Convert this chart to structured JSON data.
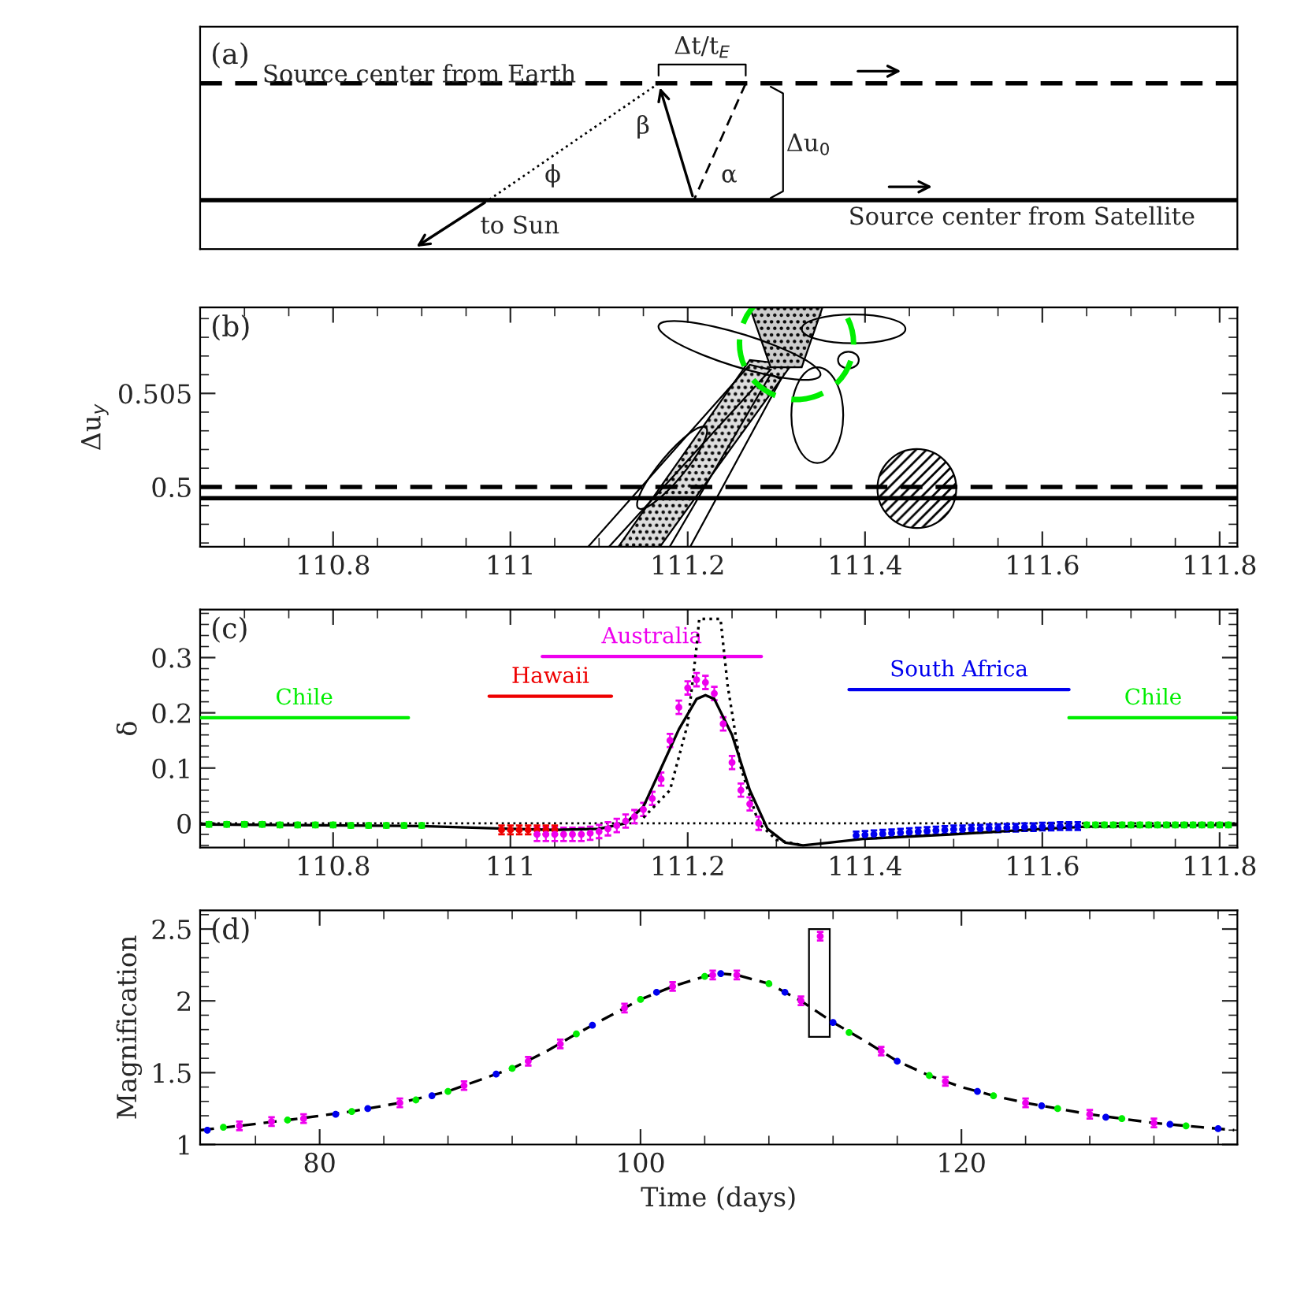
{
  "chart_data": [
    {
      "type": "other",
      "annotations": [
        "(a)",
        "Source center from Earth",
        "Δt/t$_{E}$",
        "β",
        "ϕ",
        "α",
        "Δu$_{0}$",
        "to Sun",
        "Source center from Satellite"
      ]
    },
    {
      "type": "line",
      "ylabel": "Δu$_{y}$",
      "xlim": [
        110.65,
        111.82
      ],
      "xticks": [
        110.8,
        111,
        111.2,
        111.4,
        111.6,
        111.8
      ],
      "ylim": [
        0.4968,
        0.5096
      ],
      "yticks": [
        0.5,
        0.505
      ],
      "annotations": [
        "(b)"
      ],
      "series": [
        {
          "type": "line",
          "color": "#000000",
          "line_style": "dashed",
          "x": [
            110.65,
            111.82
          ],
          "values": [
            0.5,
            0.5
          ]
        },
        {
          "type": "line",
          "color": "#000000",
          "line_style": "solid",
          "x": [
            110.65,
            111.82
          ],
          "values": [
            0.4994,
            0.4994
          ]
        }
      ]
    },
    {
      "type": "scatter",
      "ylabel": "δ",
      "xlim": [
        110.65,
        111.82
      ],
      "xticks": [
        110.8,
        111,
        111.2,
        111.4,
        111.6,
        111.8
      ],
      "ylim": [
        -0.044,
        0.387
      ],
      "yticks": [
        0,
        0.1,
        0.2,
        0.3
      ],
      "annotations": [
        "(c)"
      ],
      "ref_lines": [
        {
          "axis": "y",
          "value": 0,
          "color": "#000000",
          "line_style": "dotted"
        }
      ],
      "series": [
        {
          "type": "line",
          "name": "Chile",
          "color": "#00ee00",
          "x": [
            110.65,
            110.885
          ],
          "values": [
            0.191,
            0.191
          ]
        },
        {
          "type": "line",
          "name": "Hawaii",
          "color": "#ee0000",
          "x": [
            110.976,
            111.114
          ],
          "values": [
            0.23,
            0.23
          ]
        },
        {
          "type": "line",
          "name": "Australia",
          "color": "#ee00ee",
          "x": [
            111.036,
            111.283
          ],
          "values": [
            0.302,
            0.302
          ]
        },
        {
          "type": "line",
          "name": "South Africa",
          "color": "#0000ee",
          "x": [
            111.382,
            111.63
          ],
          "values": [
            0.242,
            0.242
          ]
        },
        {
          "type": "line",
          "name": "Chile",
          "color": "#00ee00",
          "x": [
            111.63,
            111.82
          ],
          "values": [
            0.191,
            0.191
          ]
        },
        {
          "type": "line",
          "color": "#000000",
          "line_style": "solid",
          "x": [
            110.65,
            110.9,
            111.0,
            111.05,
            111.1,
            111.13,
            111.15,
            111.17,
            111.19,
            111.21,
            111.22,
            111.23,
            111.25,
            111.27,
            111.29,
            111.31,
            111.33,
            111.36,
            111.4,
            111.5,
            111.6,
            111.65,
            111.82
          ],
          "values": [
            -0.002,
            -0.005,
            -0.01,
            -0.012,
            -0.01,
            0.0,
            0.03,
            0.1,
            0.17,
            0.225,
            0.232,
            0.225,
            0.16,
            0.06,
            -0.01,
            -0.035,
            -0.04,
            -0.035,
            -0.028,
            -0.02,
            -0.01,
            -0.006,
            -0.003
          ]
        },
        {
          "type": "line",
          "color": "#000000",
          "line_style": "dotted",
          "x": [
            111.15,
            111.18,
            111.2,
            111.21,
            111.213,
            111.237,
            111.245,
            111.26,
            111.28,
            111.3,
            111.33
          ],
          "values": [
            0.01,
            0.06,
            0.18,
            0.32,
            0.37,
            0.37,
            0.25,
            0.1,
            0.0,
            -0.03,
            -0.04
          ]
        },
        {
          "type": "scatter",
          "color": "#00ee00",
          "x": [
            110.66,
            110.68,
            110.7,
            110.72,
            110.74,
            110.76,
            110.78,
            110.8,
            110.82,
            110.84,
            110.86,
            110.88,
            110.9
          ],
          "values": [
            -0.002,
            -0.002,
            -0.002,
            -0.002,
            -0.003,
            -0.003,
            -0.003,
            -0.003,
            -0.004,
            -0.004,
            -0.004,
            -0.004,
            -0.004
          ],
          "errors": [
            0.004,
            0.004,
            0.004,
            0.004,
            0.004,
            0.004,
            0.004,
            0.004,
            0.004,
            0.004,
            0.004,
            0.004,
            0.004
          ]
        },
        {
          "type": "scatter",
          "color": "#ee0000",
          "x": [
            110.99,
            111.0,
            111.01,
            111.02,
            111.03,
            111.04,
            111.05
          ],
          "values": [
            -0.012,
            -0.012,
            -0.012,
            -0.012,
            -0.012,
            -0.012,
            -0.012
          ],
          "errors": [
            0.008,
            0.008,
            0.008,
            0.008,
            0.008,
            0.008,
            0.008
          ]
        },
        {
          "type": "scatter",
          "color": "#ee00ee",
          "x": [
            111.03,
            111.04,
            111.05,
            111.06,
            111.07,
            111.08,
            111.09,
            111.1,
            111.11,
            111.12,
            111.13,
            111.14,
            111.15,
            111.16,
            111.17,
            111.18,
            111.19,
            111.2,
            111.21,
            111.22,
            111.23,
            111.24,
            111.25,
            111.26,
            111.27,
            111.28
          ],
          "values": [
            -0.02,
            -0.02,
            -0.02,
            -0.02,
            -0.02,
            -0.02,
            -0.018,
            -0.015,
            -0.01,
            -0.004,
            0.004,
            0.012,
            0.025,
            0.045,
            0.08,
            0.15,
            0.21,
            0.245,
            0.26,
            0.255,
            0.235,
            0.18,
            0.11,
            0.06,
            0.035,
            0.0
          ],
          "errors": [
            0.012,
            0.012,
            0.012,
            0.012,
            0.012,
            0.012,
            0.012,
            0.012,
            0.012,
            0.012,
            0.012,
            0.012,
            0.012,
            0.012,
            0.012,
            0.012,
            0.012,
            0.012,
            0.012,
            0.012,
            0.012,
            0.012,
            0.012,
            0.012,
            0.012,
            0.012
          ]
        },
        {
          "type": "scatter",
          "color": "#0000ee",
          "x": [
            111.39,
            111.4,
            111.41,
            111.42,
            111.43,
            111.44,
            111.45,
            111.46,
            111.47,
            111.48,
            111.49,
            111.5,
            111.51,
            111.52,
            111.53,
            111.54,
            111.55,
            111.56,
            111.57,
            111.58,
            111.59,
            111.6,
            111.61,
            111.62,
            111.63,
            111.64
          ],
          "values": [
            -0.022,
            -0.021,
            -0.02,
            -0.019,
            -0.018,
            -0.017,
            -0.016,
            -0.015,
            -0.014,
            -0.013,
            -0.012,
            -0.011,
            -0.011,
            -0.01,
            -0.01,
            -0.009,
            -0.009,
            -0.008,
            -0.008,
            -0.007,
            -0.007,
            -0.006,
            -0.006,
            -0.005,
            -0.005,
            -0.005
          ],
          "errors": [
            0.007,
            0.007,
            0.007,
            0.007,
            0.007,
            0.007,
            0.007,
            0.007,
            0.007,
            0.007,
            0.007,
            0.007,
            0.007,
            0.007,
            0.007,
            0.007,
            0.007,
            0.007,
            0.007,
            0.007,
            0.007,
            0.007,
            0.007,
            0.007,
            0.007,
            0.007
          ]
        },
        {
          "type": "scatter",
          "color": "#00ee00",
          "x": [
            111.65,
            111.66,
            111.67,
            111.68,
            111.69,
            111.7,
            111.71,
            111.72,
            111.73,
            111.74,
            111.75,
            111.76,
            111.77,
            111.78,
            111.79,
            111.8,
            111.81
          ],
          "values": [
            -0.003,
            -0.003,
            -0.003,
            -0.003,
            -0.003,
            -0.003,
            -0.003,
            -0.003,
            -0.003,
            -0.003,
            -0.003,
            -0.003,
            -0.003,
            -0.003,
            -0.003,
            -0.003,
            -0.003
          ],
          "errors": [
            0.004,
            0.004,
            0.004,
            0.004,
            0.004,
            0.004,
            0.004,
            0.004,
            0.004,
            0.004,
            0.004,
            0.004,
            0.004,
            0.004,
            0.004,
            0.004,
            0.004
          ]
        }
      ]
    },
    {
      "type": "scatter",
      "xlabel": "Time (days)",
      "ylabel": "Magnification",
      "xlim": [
        72.55,
        137.2
      ],
      "xticks": [
        80,
        100,
        120
      ],
      "ylim": [
        1,
        2.63
      ],
      "yticks": [
        1,
        1.5,
        2,
        2.5
      ],
      "annotations": [
        "(d)"
      ],
      "series": [
        {
          "type": "line",
          "color": "#000000",
          "line_style": "dashed",
          "x": [
            72.6,
            75,
            78,
            80,
            82,
            85,
            88,
            90,
            92,
            94,
            96,
            98,
            100,
            102,
            104,
            105,
            106,
            108,
            110,
            112,
            114,
            116,
            118,
            120,
            122,
            124,
            126,
            128,
            130,
            132,
            134,
            136,
            137
          ],
          "values": [
            1.1,
            1.13,
            1.17,
            1.2,
            1.23,
            1.29,
            1.37,
            1.45,
            1.53,
            1.64,
            1.77,
            1.89,
            2.01,
            2.1,
            2.17,
            2.19,
            2.18,
            2.12,
            2.0,
            1.85,
            1.72,
            1.58,
            1.48,
            1.4,
            1.34,
            1.29,
            1.25,
            1.21,
            1.18,
            1.15,
            1.13,
            1.11,
            1.1
          ]
        },
        {
          "type": "scatter",
          "color": "#00ee00",
          "x": [
            74,
            78,
            82,
            86,
            88,
            92,
            96,
            100,
            104,
            108,
            113,
            118,
            122,
            126,
            130,
            134
          ],
          "values": [
            1.12,
            1.17,
            1.23,
            1.31,
            1.37,
            1.53,
            1.77,
            2.01,
            2.17,
            2.12,
            1.78,
            1.48,
            1.34,
            1.25,
            1.18,
            1.13
          ]
        },
        {
          "type": "scatter",
          "color": "#0000ee",
          "x": [
            73,
            81,
            83,
            87,
            91,
            97,
            101,
            105,
            109,
            112,
            116,
            121,
            125,
            129,
            133,
            136
          ],
          "values": [
            1.1,
            1.21,
            1.25,
            1.34,
            1.49,
            1.83,
            2.06,
            2.19,
            2.06,
            1.85,
            1.58,
            1.37,
            1.27,
            1.19,
            1.14,
            1.11
          ]
        },
        {
          "type": "scatter",
          "color": "#ee00ee",
          "x": [
            75,
            77,
            79,
            85,
            89,
            93,
            95,
            99,
            102,
            104.5,
            106,
            110,
            111.2,
            115,
            119,
            124,
            128,
            132
          ],
          "values": [
            1.13,
            1.16,
            1.18,
            1.29,
            1.41,
            1.58,
            1.7,
            1.95,
            2.1,
            2.18,
            2.18,
            2.0,
            2.45,
            1.65,
            1.44,
            1.29,
            1.21,
            1.15
          ],
          "errors": [
            0.03,
            0.03,
            0.03,
            0.03,
            0.03,
            0.03,
            0.03,
            0.03,
            0.03,
            0.03,
            0.03,
            0.03,
            0.03,
            0.03,
            0.03,
            0.03,
            0.03,
            0.03
          ]
        }
      ]
    }
  ]
}
